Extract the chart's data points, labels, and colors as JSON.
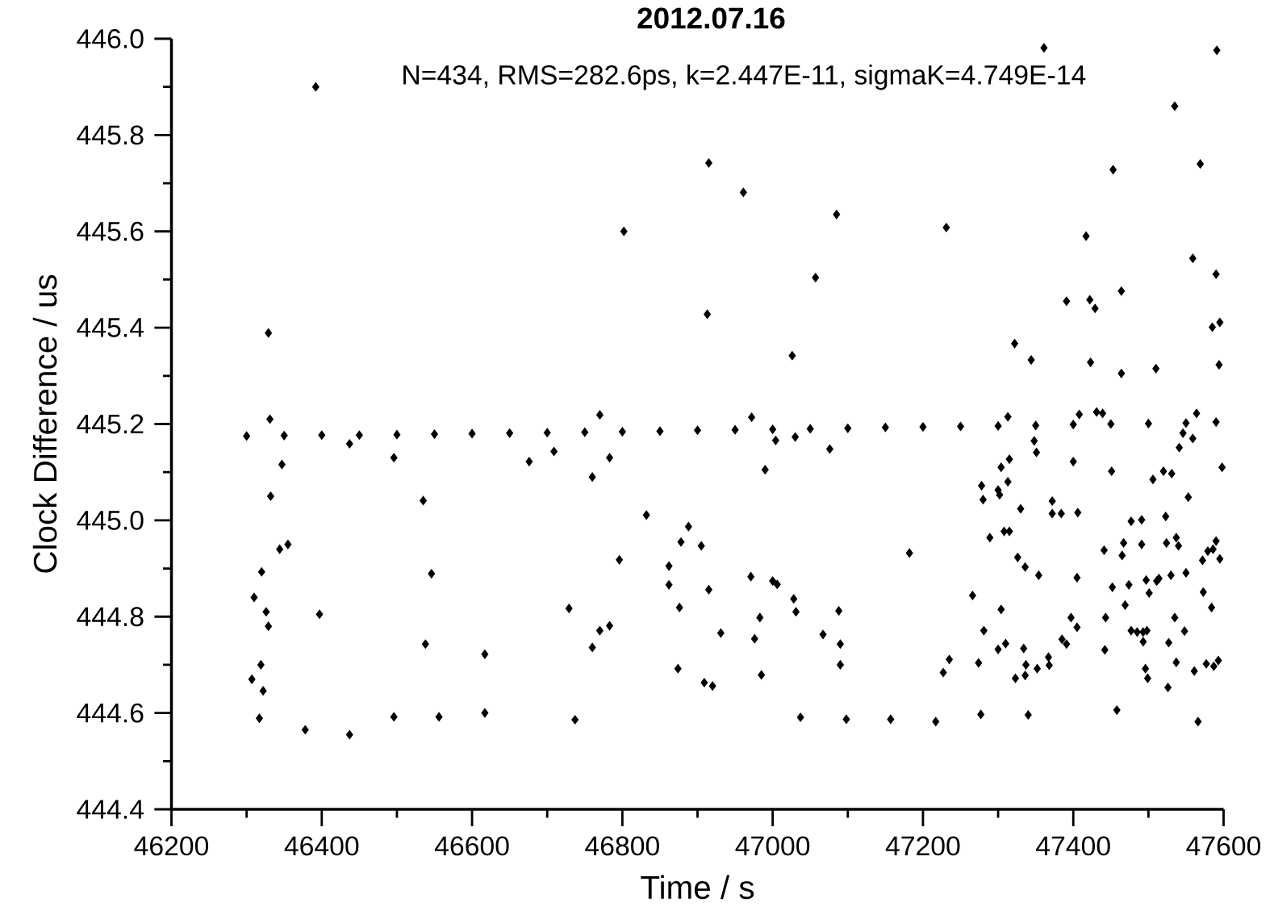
{
  "chart_data": {
    "type": "scatter",
    "title": "2012.07.16",
    "subtitle": "N=434, RMS=282.6ps, k=2.447E-11, sigmaK=4.749E-14",
    "xlabel": "Time / s",
    "ylabel": "Clock Difference / us",
    "xlim": [
      46200,
      47600
    ],
    "xticks": [
      46200,
      46400,
      46600,
      46800,
      47000,
      47200,
      47400,
      47600
    ],
    "ylim": [
      444.4,
      446.0
    ],
    "yticks": [
      {
        "value": 444.4,
        "label": "444.4"
      },
      {
        "value": 444.6,
        "label": "444.6"
      },
      {
        "value": 444.8,
        "label": "444.8"
      },
      {
        "value": 445.0,
        "label": "445.0"
      },
      {
        "value": 445.2,
        "label": "445.2"
      },
      {
        "value": 445.4,
        "label": "445.4"
      },
      {
        "value": 445.6,
        "label": "445.6"
      },
      {
        "value": 445.8,
        "label": "445.8"
      },
      {
        "value": 446.0,
        "label": "446.0"
      }
    ],
    "grid": false,
    "marker": "diamond",
    "color": "#000000",
    "x": [
      46300,
      46350,
      46400,
      46450,
      46500,
      46550,
      46600,
      46650,
      46700,
      46750,
      46800,
      46850,
      46900,
      46950,
      47000,
      47050,
      47100,
      47150,
      47200,
      47250,
      47300,
      47350,
      47400,
      47450,
      47500,
      47550,
      47590,
      46392,
      46329,
      46331,
      46347,
      46332,
      46355,
      46344,
      46320,
      46310,
      46326,
      46329,
      46319,
      46307,
      46322,
      46317,
      46378,
      46397,
      46437,
      46437,
      46496,
      46496,
      46535,
      46546,
      46538,
      46556,
      46617,
      46617,
      46676,
      46709,
      46729,
      46737,
      46760,
      46760,
      46770,
      46770,
      46783,
      46783,
      46802,
      46796,
      46832,
      46862,
      46862,
      46878,
      46876,
      46888,
      46874,
      46905,
      46915,
      46913,
      46915,
      46909,
      46920,
      46931,
      46961,
      46972,
      46971,
      46983,
      46976,
      46990,
      46985,
      47000,
      47006,
      47004,
      47026,
      47030,
      47028,
      47031,
      47037,
      47057,
      47067,
      47076,
      47085,
      47088,
      47090,
      47090,
      47098,
      47157,
      47182,
      47217,
      47231,
      47227,
      47235,
      47266,
      47274,
      47278,
      47280,
      47281,
      47277,
      47289,
      47300,
      47300,
      47304,
      47302,
      47304,
      47308,
      47315,
      47310,
      47313,
      47315,
      47313,
      47322,
      47326,
      47323,
      47330,
      47336,
      47334,
      47337,
      47336,
      47340,
      47344,
      47348,
      47351,
      47354,
      47352,
      47361,
      47367,
      47368,
      47372,
      47372,
      47384,
      47385,
      47391,
      47391,
      47397,
      47400,
      47405,
      47405,
      47406,
      47408,
      47417,
      47422,
      47423,
      47429,
      47431,
      47439,
      47441,
      47443,
      47442,
      47451,
      47453,
      47452,
      47458,
      47464,
      47464,
      47465,
      47467,
      47469,
      47474,
      47477,
      47477,
      47485,
      47491,
      47491,
      47493,
      47493,
      47496,
      47499,
      47497,
      47501,
      47498,
      47506,
      47510,
      47511,
      47514,
      47520,
      47523,
      47524,
      47526,
      47527,
      47530,
      47531,
      47535,
      47535,
      47537,
      47537,
      47540,
      47541,
      47546,
      47548,
      47550,
      47553,
      47559,
      47559,
      47561,
      47564,
      47566,
      47569,
      47573,
      47572,
      47577,
      47579,
      47584,
      47585,
      47587,
      47586,
      47590,
      47590,
      47591,
      47593,
      47595,
      47594,
      47595,
      47598
    ],
    "values": [
      445.175,
      445.176,
      445.177,
      445.177,
      445.178,
      445.179,
      445.18,
      445.181,
      445.182,
      445.183,
      445.184,
      445.185,
      445.187,
      445.188,
      445.189,
      445.19,
      445.191,
      445.193,
      445.194,
      445.195,
      445.196,
      445.197,
      445.199,
      445.2,
      445.201,
      445.202,
      445.204,
      445.9,
      445.389,
      445.21,
      445.116,
      445.05,
      444.95,
      444.94,
      444.893,
      444.84,
      444.81,
      444.78,
      444.7,
      444.67,
      444.646,
      444.589,
      444.565,
      444.805,
      444.555,
      445.159,
      445.13,
      444.592,
      445.041,
      444.889,
      444.743,
      444.592,
      444.722,
      444.6,
      445.122,
      445.143,
      444.817,
      444.586,
      445.09,
      444.736,
      445.219,
      444.771,
      444.781,
      445.13,
      445.6,
      444.918,
      445.011,
      444.905,
      444.866,
      444.955,
      444.819,
      444.987,
      444.692,
      444.947,
      445.742,
      445.428,
      444.856,
      444.663,
      444.656,
      444.766,
      445.681,
      445.214,
      444.883,
      444.798,
      444.754,
      445.105,
      444.679,
      444.874,
      444.867,
      445.166,
      445.342,
      445.173,
      444.837,
      444.81,
      444.591,
      445.504,
      444.763,
      445.148,
      445.635,
      444.812,
      444.743,
      444.7,
      444.587,
      444.587,
      444.932,
      444.582,
      445.608,
      444.684,
      444.711,
      444.844,
      444.704,
      445.072,
      445.043,
      444.771,
      444.597,
      444.964,
      445.063,
      444.732,
      445.11,
      445.053,
      444.815,
      444.977,
      444.977,
      444.744,
      445.215,
      445.127,
      445.08,
      445.367,
      444.923,
      444.672,
      445.024,
      444.903,
      444.734,
      444.7,
      444.678,
      444.596,
      445.333,
      445.165,
      445.141,
      444.886,
      444.692,
      445.981,
      444.716,
      444.699,
      445.04,
      445.014,
      445.014,
      444.753,
      445.455,
      444.743,
      444.798,
      445.122,
      444.778,
      444.881,
      445.016,
      445.22,
      445.59,
      445.458,
      445.328,
      445.44,
      445.225,
      445.222,
      444.938,
      444.798,
      444.731,
      445.102,
      445.728,
      444.861,
      444.606,
      445.476,
      445.305,
      444.927,
      444.953,
      444.824,
      444.866,
      444.998,
      444.771,
      444.768,
      445.001,
      444.95,
      444.748,
      444.768,
      444.692,
      444.672,
      444.876,
      444.849,
      444.771,
      445.085,
      445.315,
      444.874,
      444.879,
      445.102,
      445.008,
      444.953,
      444.653,
      444.746,
      444.886,
      445.097,
      445.86,
      444.798,
      444.964,
      444.705,
      444.947,
      445.151,
      445.181,
      444.77,
      444.891,
      445.048,
      445.544,
      445.17,
      444.687,
      445.222,
      444.582,
      445.74,
      444.851,
      444.917,
      444.702,
      444.936,
      444.819,
      445.401,
      444.697,
      444.94,
      445.511,
      444.957,
      445.976,
      444.709,
      445.411,
      445.323,
      444.92,
      445.11
    ]
  }
}
